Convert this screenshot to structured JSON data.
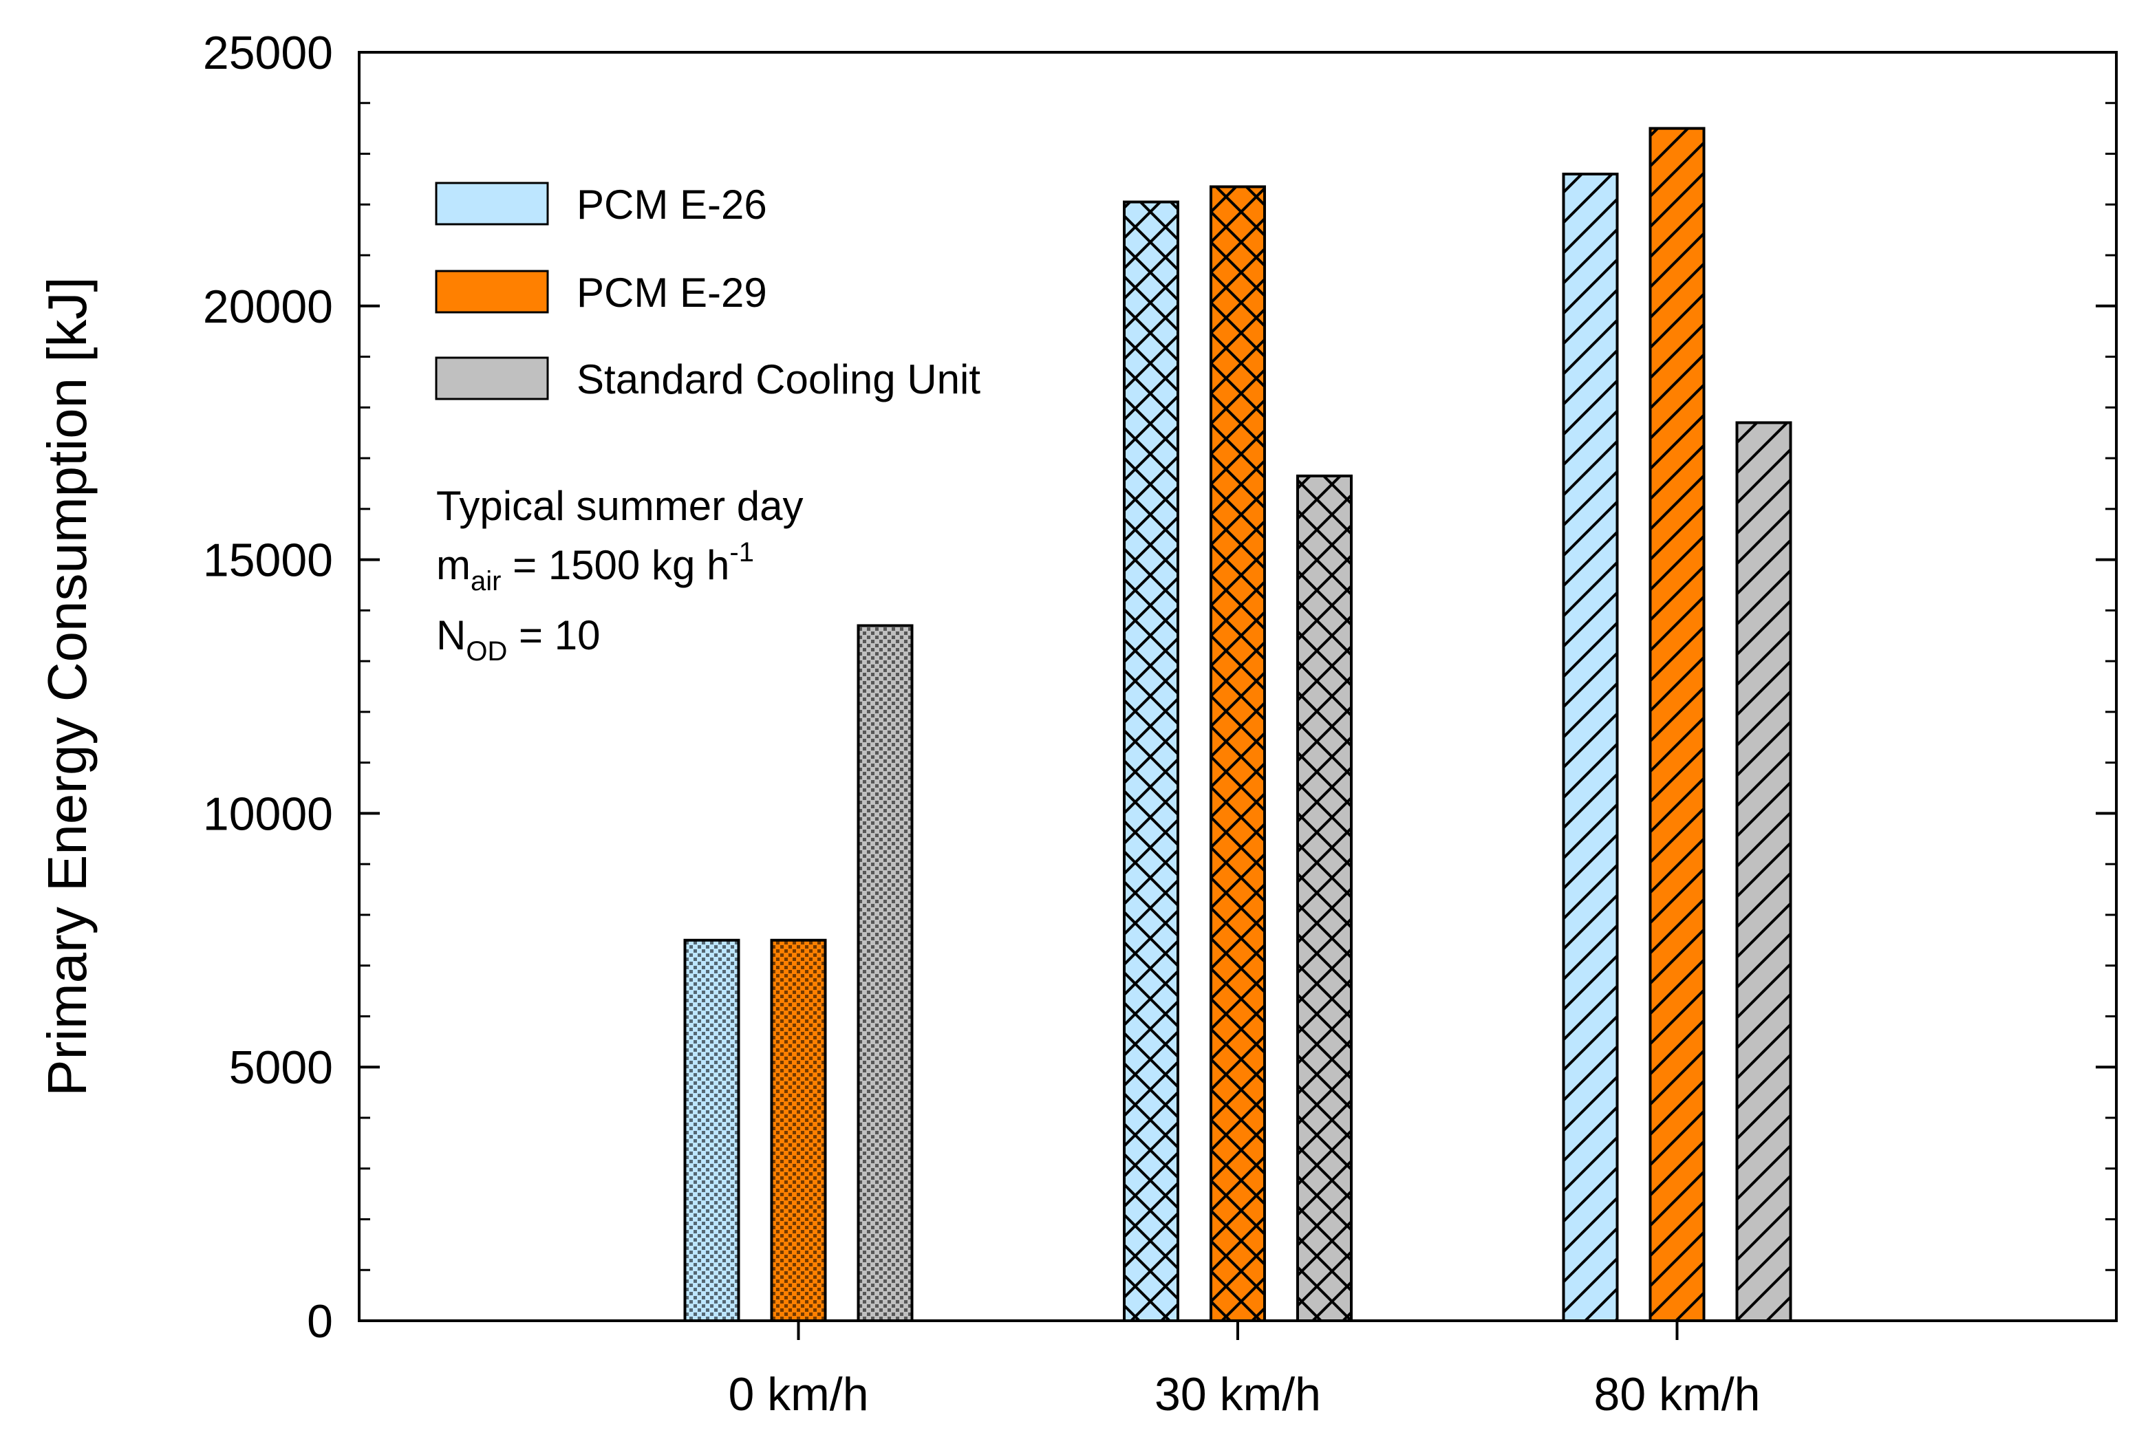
{
  "chart_data": {
    "type": "bar",
    "categories": [
      "0 km/h",
      "30 km/h",
      "80 km/h"
    ],
    "series": [
      {
        "name": "PCM E-26",
        "values": [
          7500,
          22050,
          22600
        ],
        "color": "#BDE6FF"
      },
      {
        "name": "PCM E-29",
        "values": [
          7500,
          22350,
          23500
        ],
        "color": "#FF8000"
      },
      {
        "name": "Standard Cooling Unit",
        "values": [
          13700,
          16650,
          17700
        ],
        "color": "#C0C0C0"
      }
    ],
    "hatch_patterns": [
      "dots",
      "crosshatch",
      "diagonal"
    ],
    "ylabel": "Primary Energy Consumption [kJ]",
    "xlabel": "",
    "ylim": [
      0,
      25000
    ],
    "yticks": [
      "0",
      "5000",
      "10000",
      "15000",
      "20000",
      "25000"
    ],
    "grid": false,
    "legend_position": "top-left",
    "annotation": {
      "line1": "Typical summer day",
      "line2_main": "m",
      "line2_sub": "air",
      "line2_rest": " = 1500 kg h",
      "line2_sup": "-1",
      "line3_main": "N",
      "line3_sub": "OD",
      "line3_rest": " = 10"
    }
  }
}
